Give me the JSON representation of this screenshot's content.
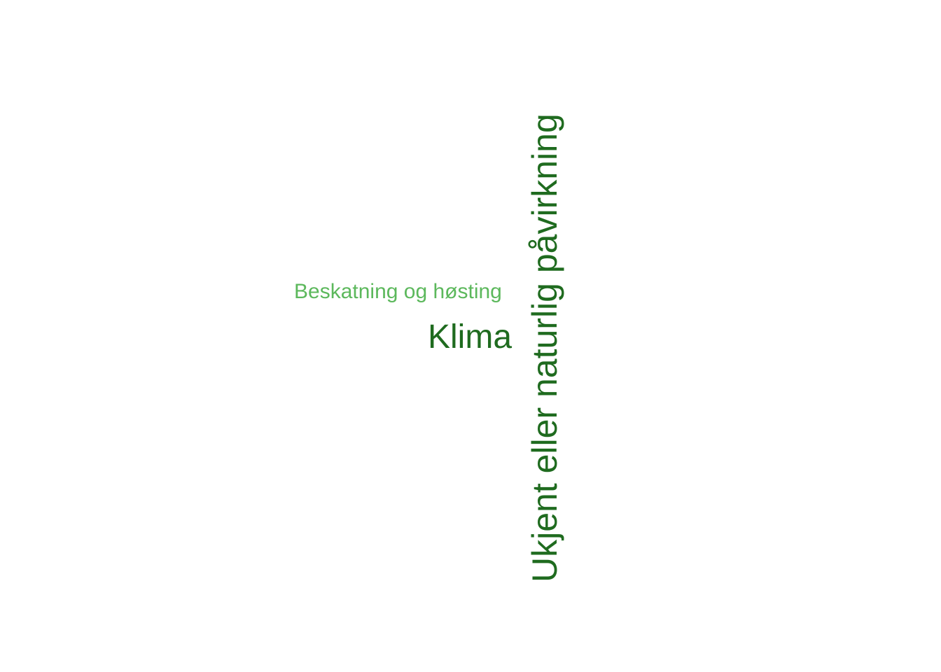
{
  "words": [
    {
      "text": "Beskatning og høsting",
      "color": "#5cb85c"
    },
    {
      "text": "Klima",
      "color": "#1f6b1f"
    },
    {
      "text": "Ukjent eller naturlig påvirkning",
      "color": "#1f6b1f"
    }
  ]
}
